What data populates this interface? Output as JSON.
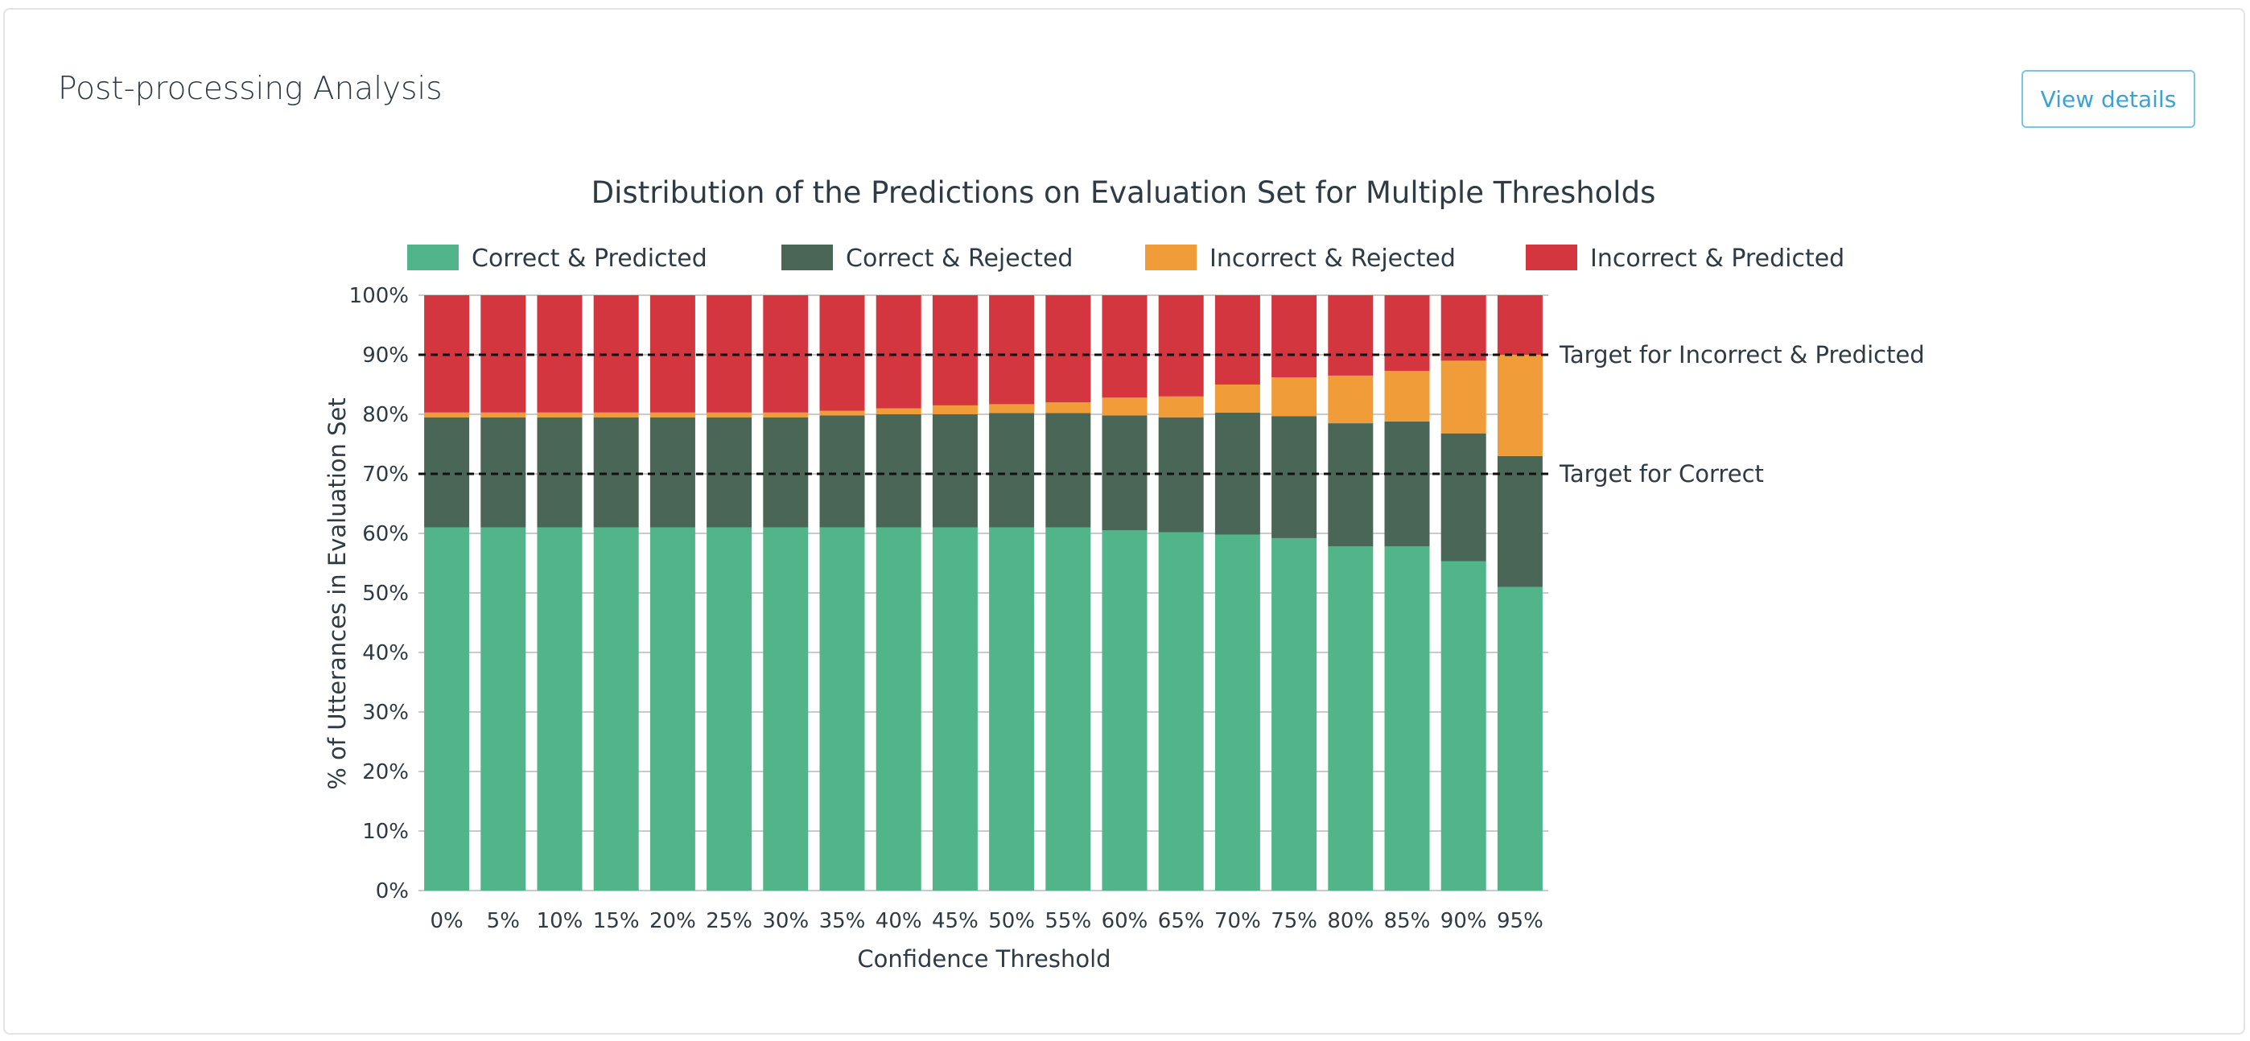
{
  "card": {
    "title": "Post-processing Analysis",
    "view_details_label": "View details"
  },
  "chart_data": {
    "type": "bar",
    "stacked": true,
    "title": "Distribution of the Predictions on Evaluation Set for Multiple Thresholds",
    "xlabel": "Confidence Threshold",
    "ylabel": "% of Utterances in Evaluation Set",
    "ylim": [
      0,
      100
    ],
    "y_ticks": [
      "0%",
      "10%",
      "20%",
      "30%",
      "40%",
      "50%",
      "60%",
      "70%",
      "80%",
      "90%",
      "100%"
    ],
    "categories": [
      "0%",
      "5%",
      "10%",
      "15%",
      "20%",
      "25%",
      "30%",
      "35%",
      "40%",
      "45%",
      "50%",
      "55%",
      "60%",
      "65%",
      "70%",
      "75%",
      "80%",
      "85%",
      "90%",
      "95%"
    ],
    "grid": true,
    "legend_position": "top",
    "series": [
      {
        "name": "Correct & Predicted",
        "color": "#52b58a",
        "values": [
          61,
          61,
          61,
          61,
          61,
          61,
          61,
          61,
          61,
          61,
          61,
          61,
          60.5,
          60.2,
          59.8,
          59.2,
          57.8,
          57.8,
          55.3,
          51
        ]
      },
      {
        "name": "Correct & Rejected",
        "color": "#4a6657",
        "values": [
          18.5,
          18.5,
          18.5,
          18.5,
          18.5,
          18.5,
          18.5,
          18.8,
          19,
          19,
          19.2,
          19.2,
          19.3,
          19.3,
          20.5,
          20.5,
          20.7,
          21,
          21.5,
          22
        ]
      },
      {
        "name": "Incorrect & Rejected",
        "color": "#f09c38",
        "values": [
          0.8,
          0.8,
          0.8,
          0.8,
          0.8,
          0.8,
          0.8,
          0.8,
          1.0,
          1.5,
          1.5,
          1.8,
          3.0,
          3.5,
          4.7,
          6.5,
          8.0,
          8.5,
          12.2,
          17
        ]
      },
      {
        "name": "Incorrect & Predicted",
        "color": "#d4363f",
        "values": [
          19.7,
          19.7,
          19.7,
          19.7,
          19.7,
          19.7,
          19.7,
          19.4,
          19.0,
          18.5,
          18.3,
          18.0,
          17.2,
          17.0,
          15.0,
          13.8,
          13.5,
          12.7,
          11.0,
          10
        ]
      }
    ],
    "targets": [
      {
        "label": "Target for Incorrect & Predicted",
        "value": 90
      },
      {
        "label": "Target for Correct",
        "value": 70
      }
    ]
  }
}
